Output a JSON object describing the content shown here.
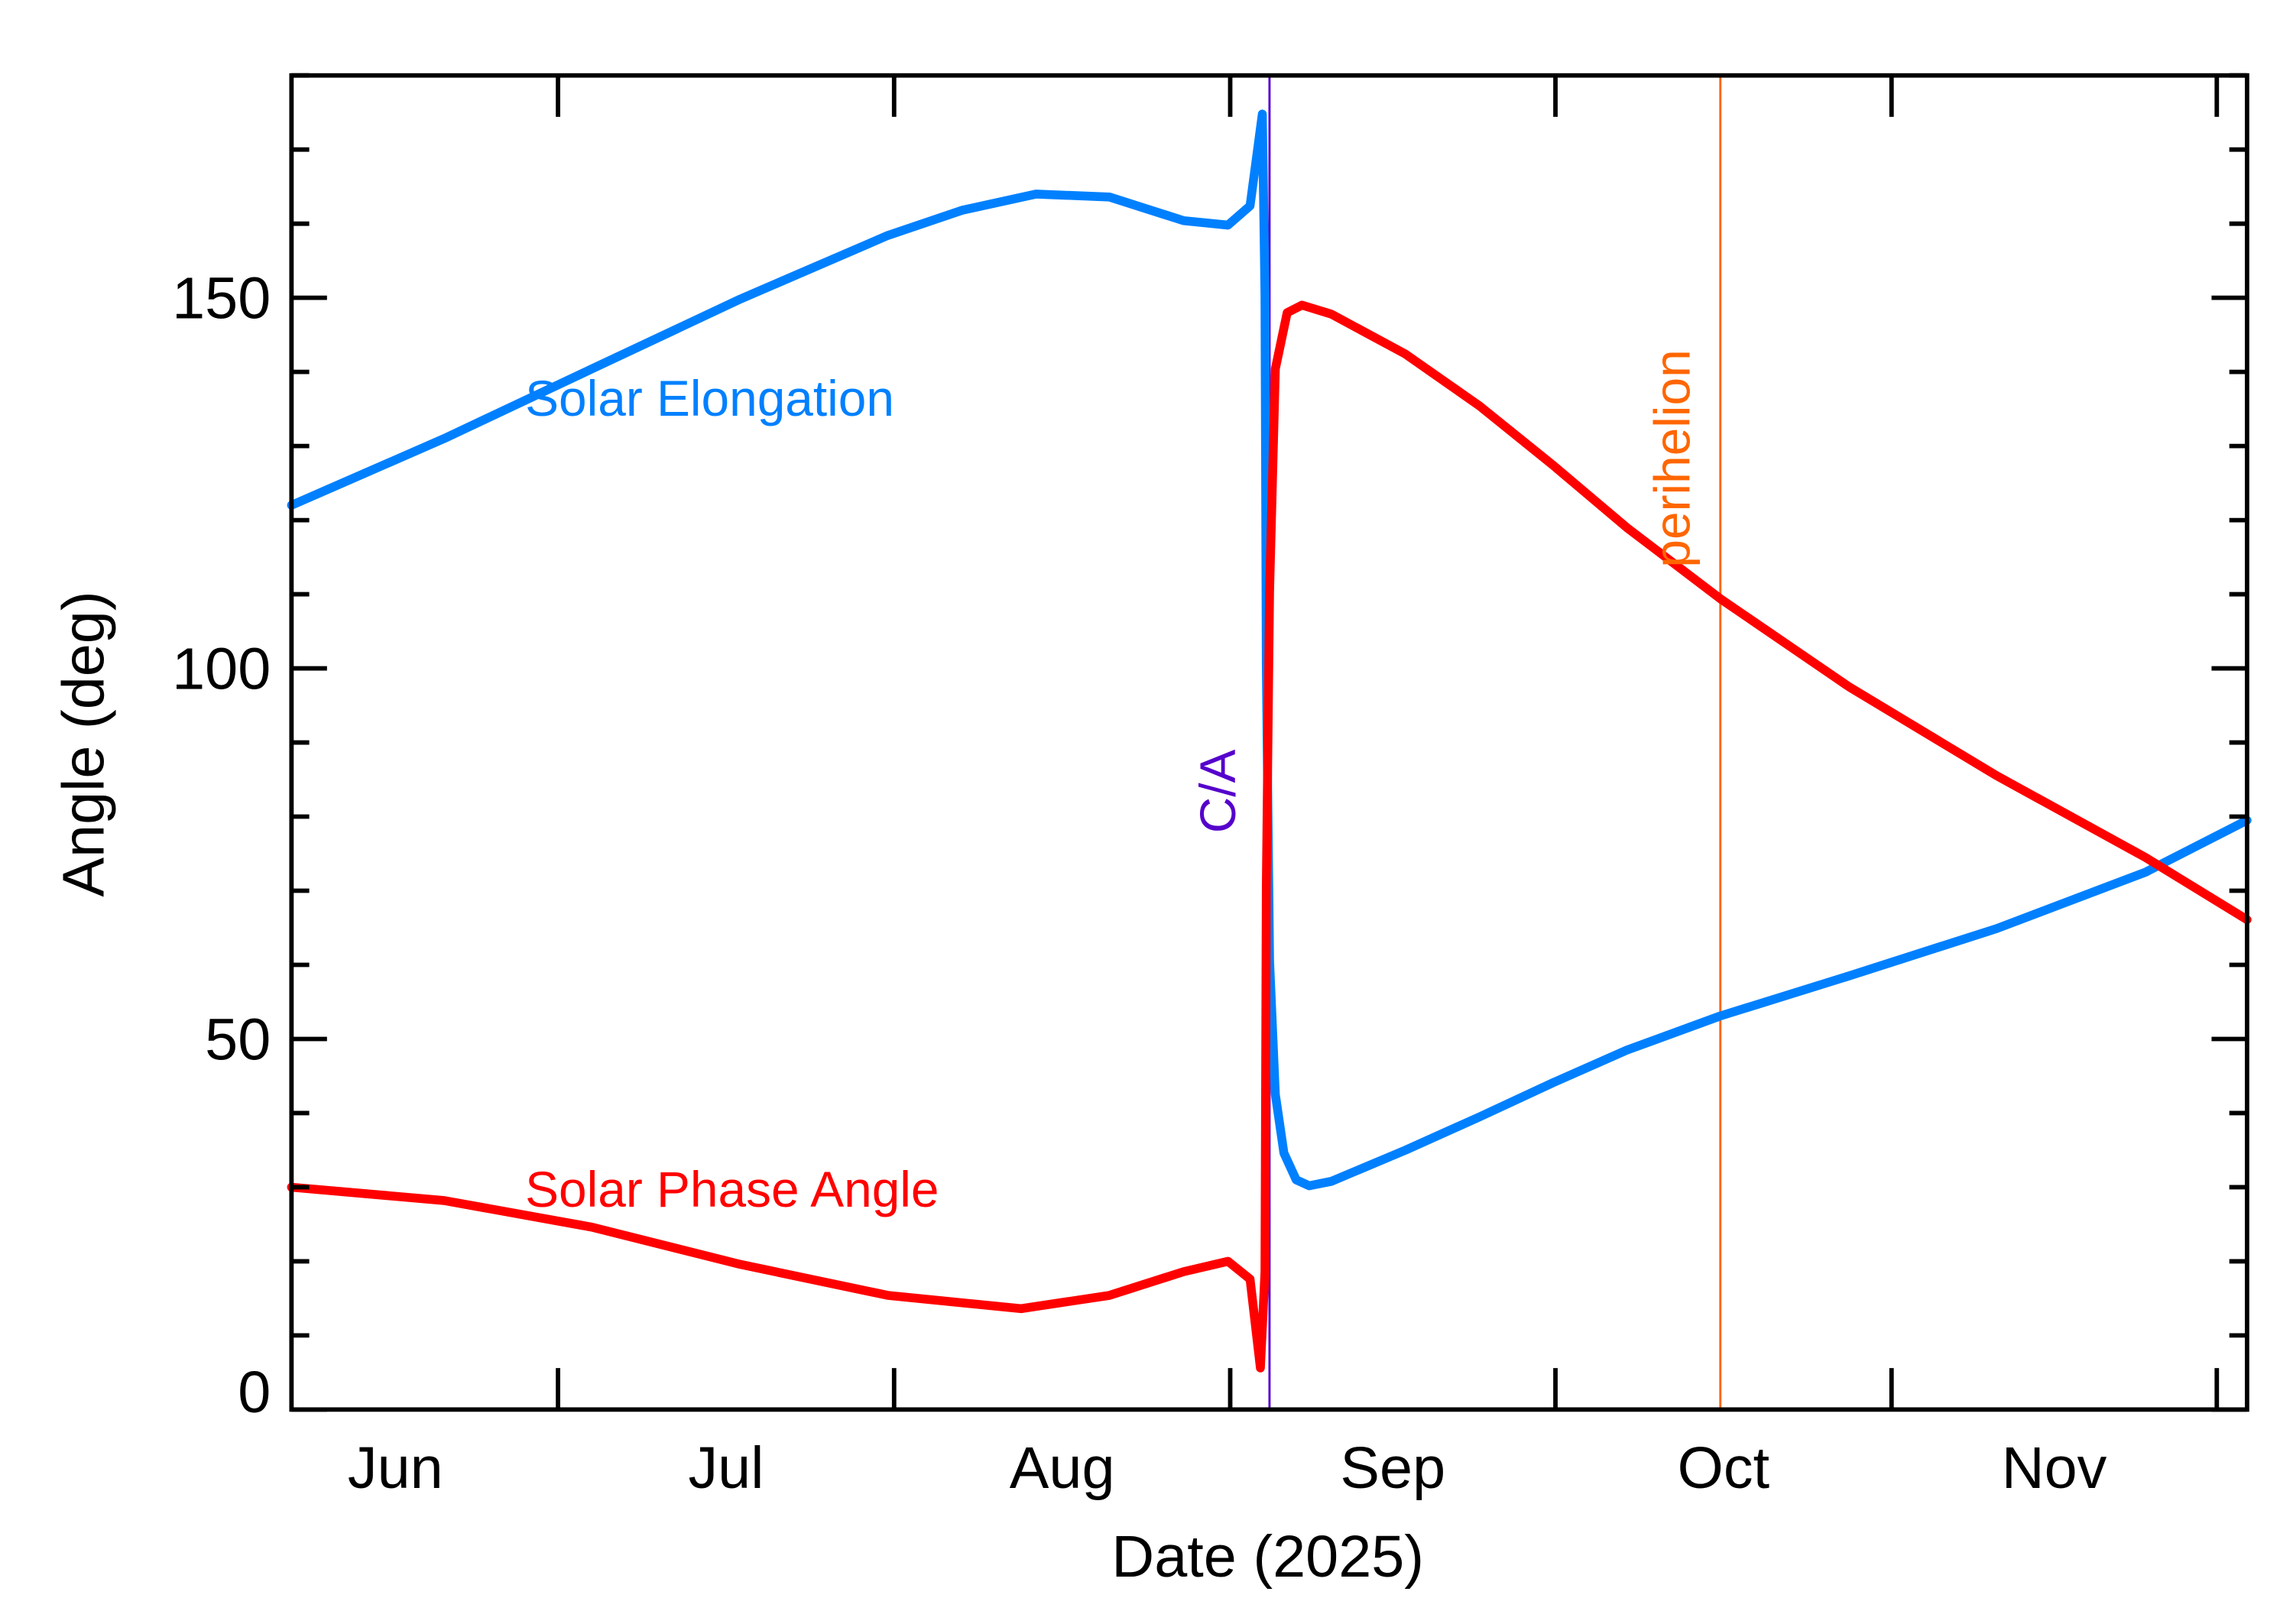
{
  "chart_data": {
    "type": "line",
    "title": "",
    "xlabel": "Date (2025)",
    "ylabel": "Angle (deg)",
    "xlim": [
      "2025-06-06T10:00",
      "2025-12-03T19:00"
    ],
    "ylim": [
      0,
      180
    ],
    "grid": false,
    "x_tick_labels": [
      "Jun",
      "Jul",
      "Aug",
      "Sep",
      "Oct",
      "Nov"
    ],
    "y_tick_labels": [
      "0",
      "50",
      "100",
      "150"
    ],
    "y_major_ticks": [
      0,
      50,
      100,
      150
    ],
    "y_minor_step": 10,
    "series": [
      {
        "name": "Solar Elongation",
        "color": "#0080ff",
        "x": [
          "2025-06-06T10:00",
          "2025-06-20T12:00",
          "2025-07-04T03:00",
          "2025-07-17T19:00",
          "2025-07-31T10:00",
          "2025-08-07T06:00",
          "2025-08-14T02:00",
          "2025-08-20T21:00",
          "2025-08-27T17:00",
          "2025-08-31T19:00",
          "2025-09-02T20:00",
          "2025-09-03T23:00",
          "2025-09-04T05:00",
          "2025-09-04T08:00",
          "2025-09-04T15:00",
          "2025-09-05T04:00",
          "2025-09-05T23:00",
          "2025-09-07T02:00",
          "2025-09-08T07:00",
          "2025-09-10T08:00",
          "2025-09-17T04:00",
          "2025-09-24T00:00",
          "2025-09-30T19:00",
          "2025-10-07T14:00",
          "2025-10-16T05:00",
          "2025-10-28T02:00",
          "2025-11-10T17:00",
          "2025-11-24T10:00",
          "2025-12-03T19:00"
        ],
        "y": [
          122.0,
          131.0,
          140.4,
          149.8,
          158.4,
          161.8,
          164.0,
          163.6,
          160.4,
          159.8,
          162.4,
          174.8,
          150.4,
          100.5,
          60.5,
          42.5,
          34.6,
          31.0,
          30.2,
          30.8,
          35.0,
          39.5,
          44.1,
          48.5,
          53.1,
          58.5,
          64.9,
          72.5,
          79.5
        ]
      },
      {
        "name": "Solar Phase Angle",
        "color": "#ff0000",
        "x": [
          "2025-06-06T10:00",
          "2025-06-20T12:00",
          "2025-07-04T03:00",
          "2025-07-17T19:00",
          "2025-07-31T10:00",
          "2025-08-12T17:00",
          "2025-08-20T21:00",
          "2025-08-27T17:00",
          "2025-08-31T19:00",
          "2025-09-02T20:00",
          "2025-09-03T19:00",
          "2025-09-04T05:00",
          "2025-09-04T08:00",
          "2025-09-04T15:00",
          "2025-09-05T04:00",
          "2025-09-06T06:00",
          "2025-09-07T15:00",
          "2025-09-10T08:00",
          "2025-09-17T04:00",
          "2025-09-24T00:00",
          "2025-09-30T19:00",
          "2025-10-07T14:00",
          "2025-10-16T05:00",
          "2025-10-28T02:00",
          "2025-11-10T17:00",
          "2025-11-24T10:00",
          "2025-12-03T19:00"
        ],
        "y": [
          30.0,
          28.2,
          24.6,
          19.6,
          15.4,
          13.6,
          15.4,
          18.6,
          20.0,
          17.6,
          5.6,
          18.6,
          70.5,
          110.4,
          140.4,
          148.0,
          149.0,
          147.8,
          142.4,
          135.4,
          127.4,
          119.0,
          109.4,
          97.5,
          85.5,
          74.5,
          66.1
        ]
      }
    ],
    "annotations": [
      {
        "label": "C/A",
        "x": "2025-09-04T15:00",
        "color": "#5500cc"
      },
      {
        "label": "perihelion",
        "x": "2025-10-16T05:00",
        "color": "#ff6600"
      }
    ]
  }
}
